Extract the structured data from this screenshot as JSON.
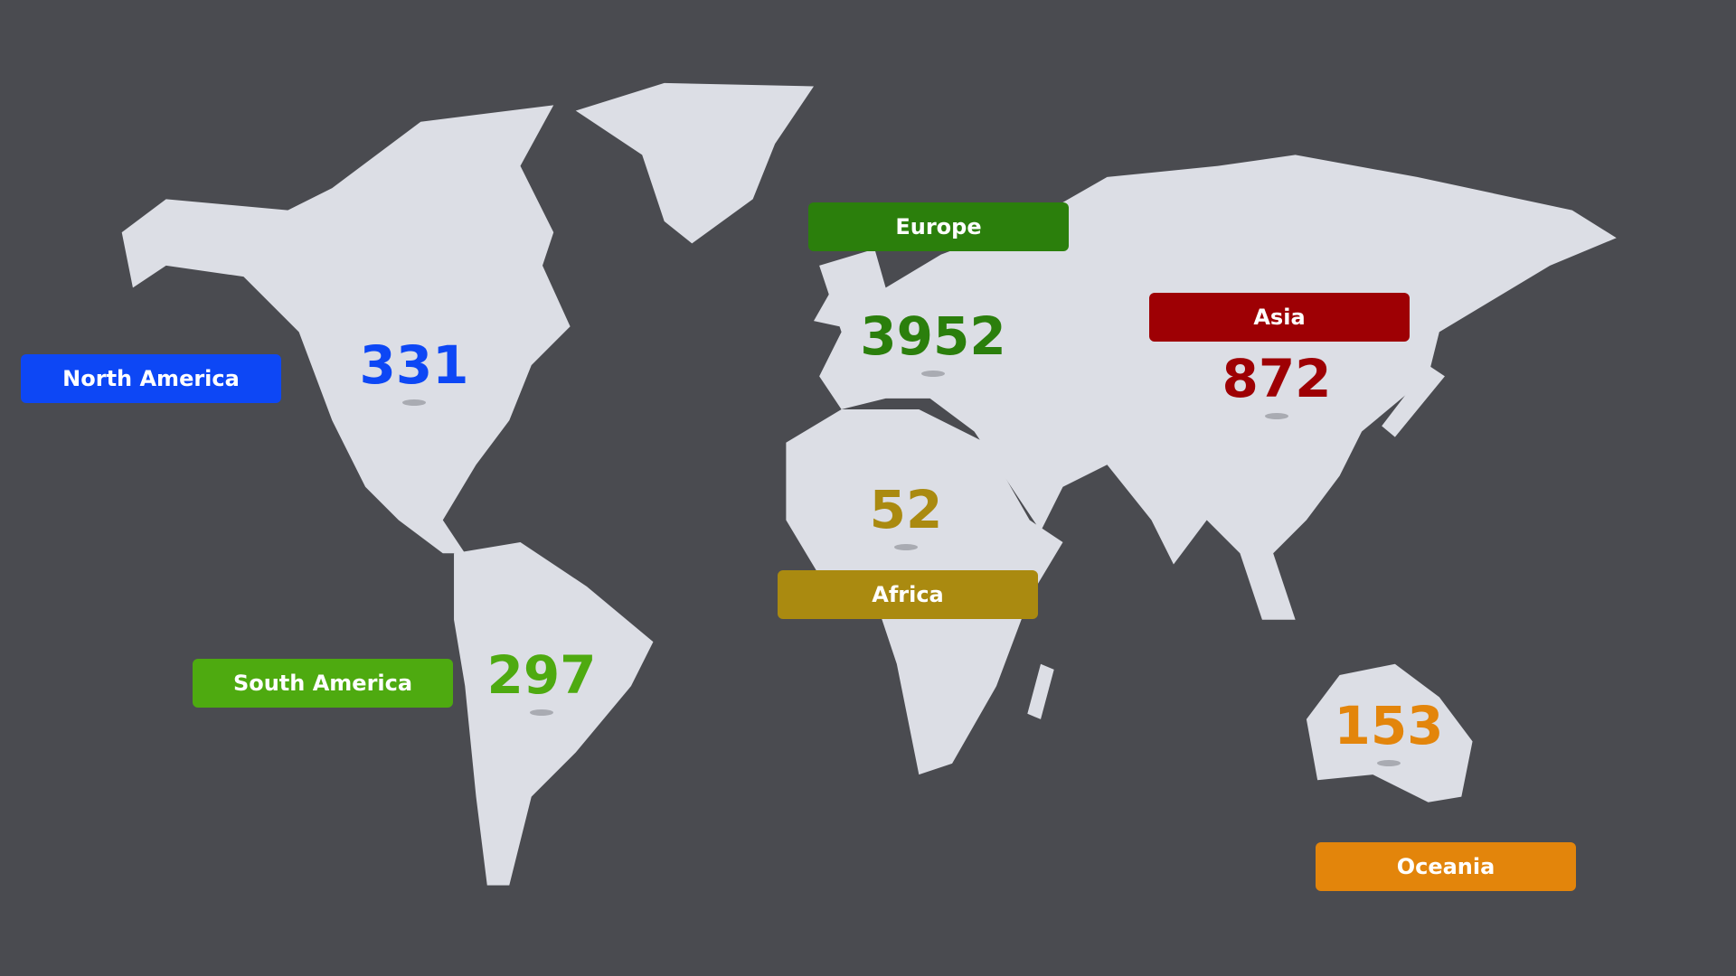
{
  "map_colors": {
    "background": "#4a4b50",
    "land": "#dcdee5"
  },
  "regions": [
    {
      "name": "North America",
      "value": "331",
      "color": "#0d47f5"
    },
    {
      "name": "Europe",
      "value": "3952",
      "color": "#2b7f0c"
    },
    {
      "name": "Asia",
      "value": "872",
      "color": "#9e0004"
    },
    {
      "name": "Africa",
      "value": "52",
      "color": "#aa8a10"
    },
    {
      "name": "South America",
      "value": "297",
      "color": "#4eaa10"
    },
    {
      "name": "Oceania",
      "value": "153",
      "color": "#e3850b"
    }
  ]
}
